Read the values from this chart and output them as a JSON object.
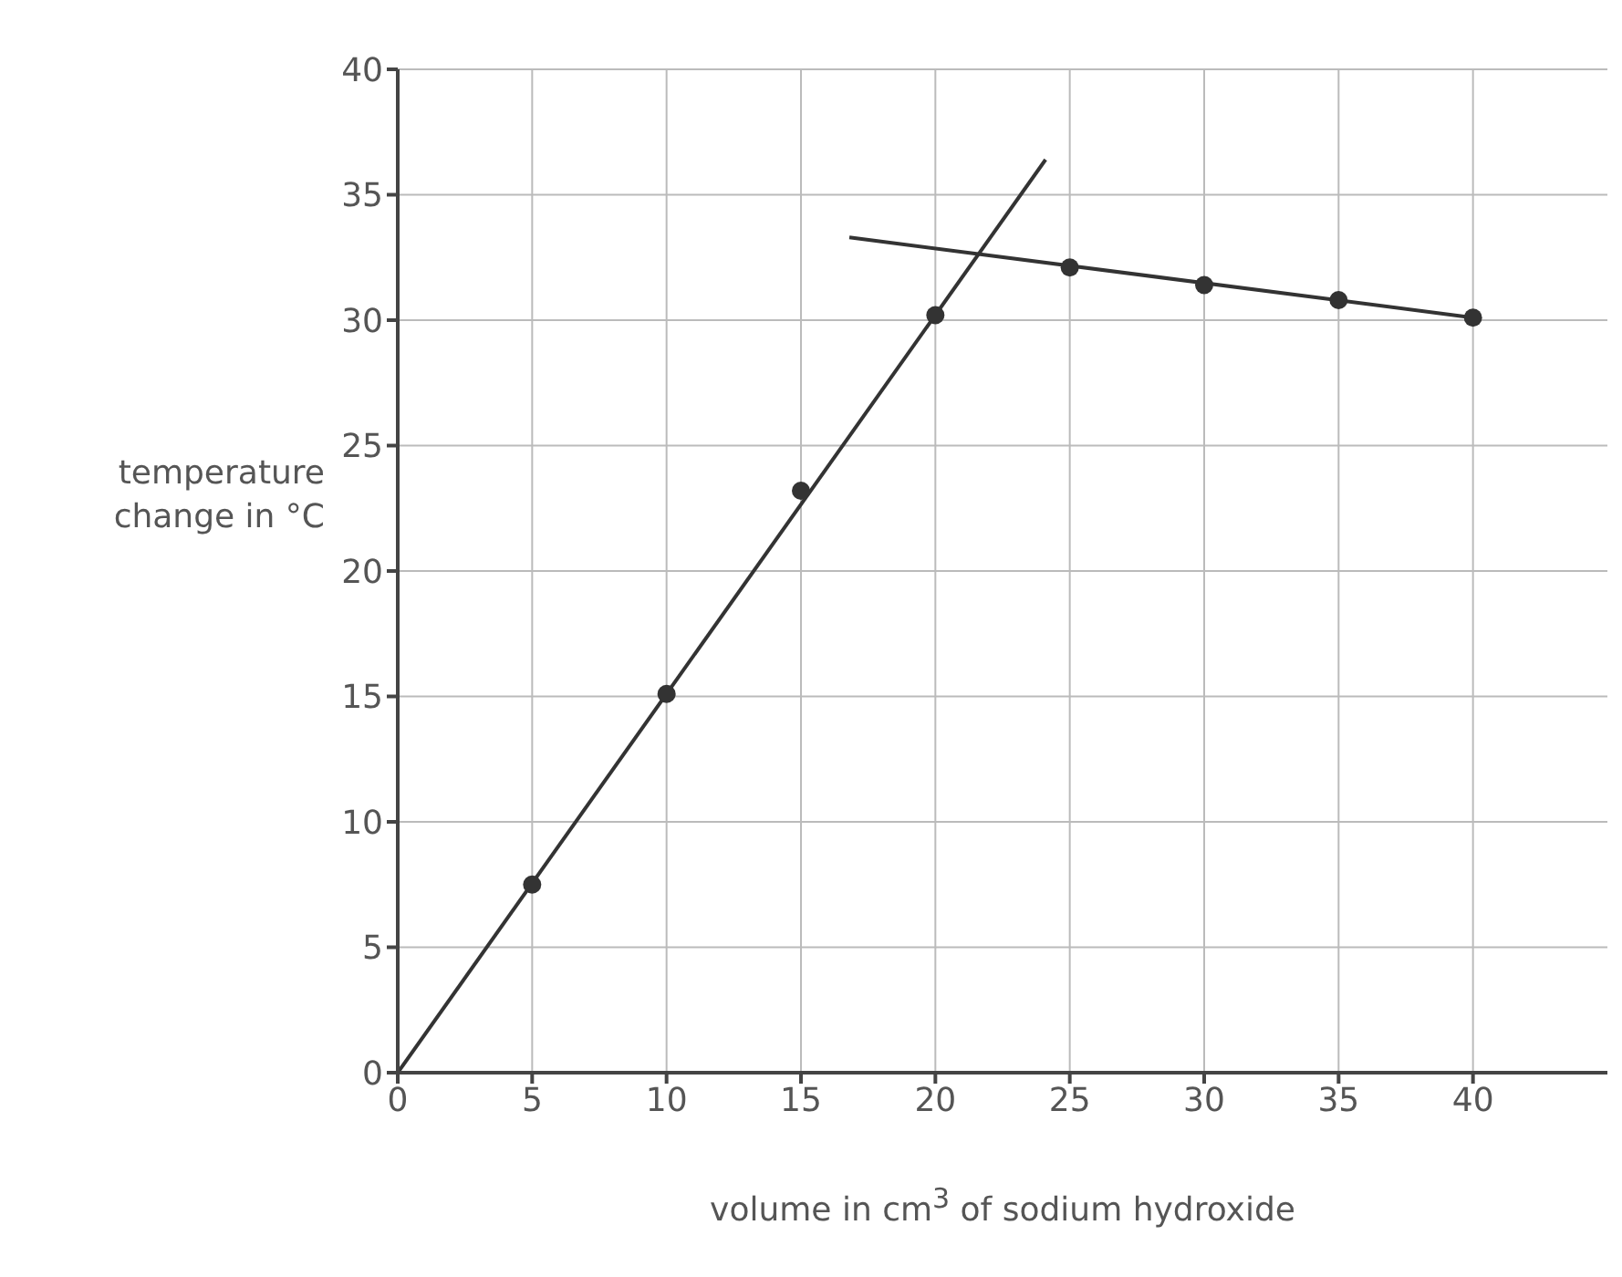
{
  "chart_data": {
    "type": "scatter",
    "xlabel": "volume in cm$^{3}$ of sodium hydroxide",
    "ylabel": "temperature change in °C",
    "xlim": [
      0,
      45
    ],
    "xticks": [
      0,
      5,
      10,
      15,
      20,
      25,
      30,
      35,
      40
    ],
    "ylim": [
      0,
      40
    ],
    "yticks": [
      0,
      5,
      10,
      15,
      20,
      25,
      30,
      35,
      40
    ],
    "grid": true,
    "marker": "circle",
    "series": [
      {
        "color": "#333333",
        "x": [
          5,
          10,
          15,
          20,
          25,
          30,
          35,
          40
        ],
        "values": [
          7.5,
          15.1,
          23.2,
          30.2,
          32.1,
          31.4,
          30.8,
          30.1
        ]
      },
      {
        "type": "line",
        "color": "#333333",
        "marker": "none",
        "line_style": "solid",
        "x": [
          0,
          24.1
        ],
        "values": [
          0,
          36.4
        ]
      },
      {
        "type": "line",
        "color": "#333333",
        "marker": "none",
        "line_style": "solid",
        "x": [
          16.8,
          40
        ],
        "values": [
          33.3,
          30.1
        ]
      }
    ]
  }
}
